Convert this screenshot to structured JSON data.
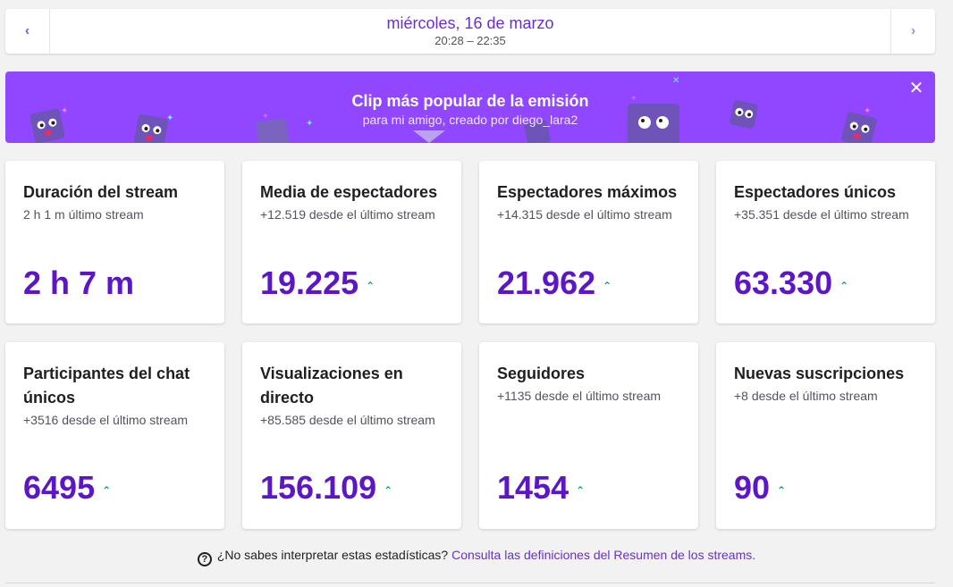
{
  "date_nav": {
    "title": "miércoles, 16 de marzo",
    "time_range": "20:28 – 22:35",
    "prev_icon": "chevron-left-icon",
    "next_icon": "chevron-right-icon"
  },
  "clip_banner": {
    "title": "Clip más popular de la emisión",
    "subtitle": "para mi amigo, creado por diego_lara2",
    "background_color": "#9147ff",
    "close_icon": "close-icon"
  },
  "stats": [
    {
      "title": "Duración del stream",
      "subtitle": "2 h 1 m último stream",
      "value": "2 h 7 m",
      "trend": "none"
    },
    {
      "title": "Media de espectadores",
      "subtitle": "+12.519 desde el último stream",
      "value": "19.225",
      "trend": "up"
    },
    {
      "title": "Espectadores máximos",
      "subtitle": "+14.315 desde el último stream",
      "value": "21.962",
      "trend": "up"
    },
    {
      "title": "Espectadores únicos",
      "subtitle": "+35.351 desde el último stream",
      "value": "63.330",
      "trend": "up"
    },
    {
      "title": "Participantes del chat únicos",
      "subtitle": "+3516 desde el último stream",
      "value": "6495",
      "trend": "up"
    },
    {
      "title": "Visualizaciones en directo",
      "subtitle": "+85.585 desde el último stream",
      "value": "156.109",
      "trend": "up"
    },
    {
      "title": "Seguidores",
      "subtitle": "+1135 desde el último stream",
      "value": "1454",
      "trend": "up"
    },
    {
      "title": "Nuevas suscripciones",
      "subtitle": "+8 desde el último stream",
      "value": "90",
      "trend": "up"
    }
  ],
  "help": {
    "icon": "question-circle-icon",
    "question": "¿No sabes interpretar estas estadísticas?",
    "link_text": "Consulta las definiciones del Resumen de los streams."
  },
  "colors": {
    "accent": "#5c16c5",
    "trend_up": "#00a86b",
    "banner": "#9147ff"
  }
}
